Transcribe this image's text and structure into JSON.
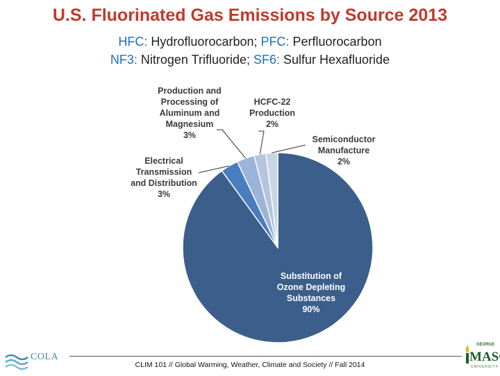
{
  "header": {
    "title": "U.S. Fluorinated Gas Emissions by Source 2013",
    "line1": [
      {
        "abbr": "HFC:",
        "text": " Hydrofluorocarbon; "
      },
      {
        "abbr": "PFC:",
        "text": " Perfluorocarbon"
      }
    ],
    "line2": [
      {
        "abbr": "NF3:",
        "text": " Nitrogen Trifluoride; "
      },
      {
        "abbr": "SF6:",
        "text": " Sulfur Hexafluoride"
      }
    ]
  },
  "chart_data": {
    "type": "pie",
    "slices": [
      {
        "label": "Substitution of Ozone Depleting Substances",
        "value": 90,
        "pct_label": "90%",
        "color": "#3b5f8a"
      },
      {
        "label": "Electrical Transmission and Distribution",
        "value": 3,
        "pct_label": "3%",
        "color": "#4a7dbf"
      },
      {
        "label": "Production and Processing of Aluminum and Magnesium",
        "value": 3,
        "pct_label": "3%",
        "color": "#9bb5d9"
      },
      {
        "label": "HCFC-22 Production",
        "value": 2,
        "pct_label": "2%",
        "color": "#b4c4dc"
      },
      {
        "label": "Semiconductor Manufacture",
        "value": 2,
        "pct_label": "2%",
        "color": "#c9d4e4"
      }
    ],
    "label_lines": [
      [
        "Substitution of",
        "Ozone Depleting",
        "Substances",
        "90%"
      ],
      [
        "Electrical",
        "Transmission",
        "and Distribution",
        "3%"
      ],
      [
        "Production and",
        "Processing of",
        "Aluminum and",
        "Magnesium",
        "3%"
      ],
      [
        "HCFC-22",
        "Production",
        "2%"
      ],
      [
        "Semiconductor",
        "Manufacture",
        "2%"
      ]
    ]
  },
  "footer": {
    "text": "CLIM 101 // Global Warming, Weather, Climate and Society // Fall 2014",
    "logo_left": "COLA",
    "logo_right_top": "GEORGE",
    "logo_right_name": "MASON",
    "logo_right_bottom": "UNIVERSITY"
  }
}
